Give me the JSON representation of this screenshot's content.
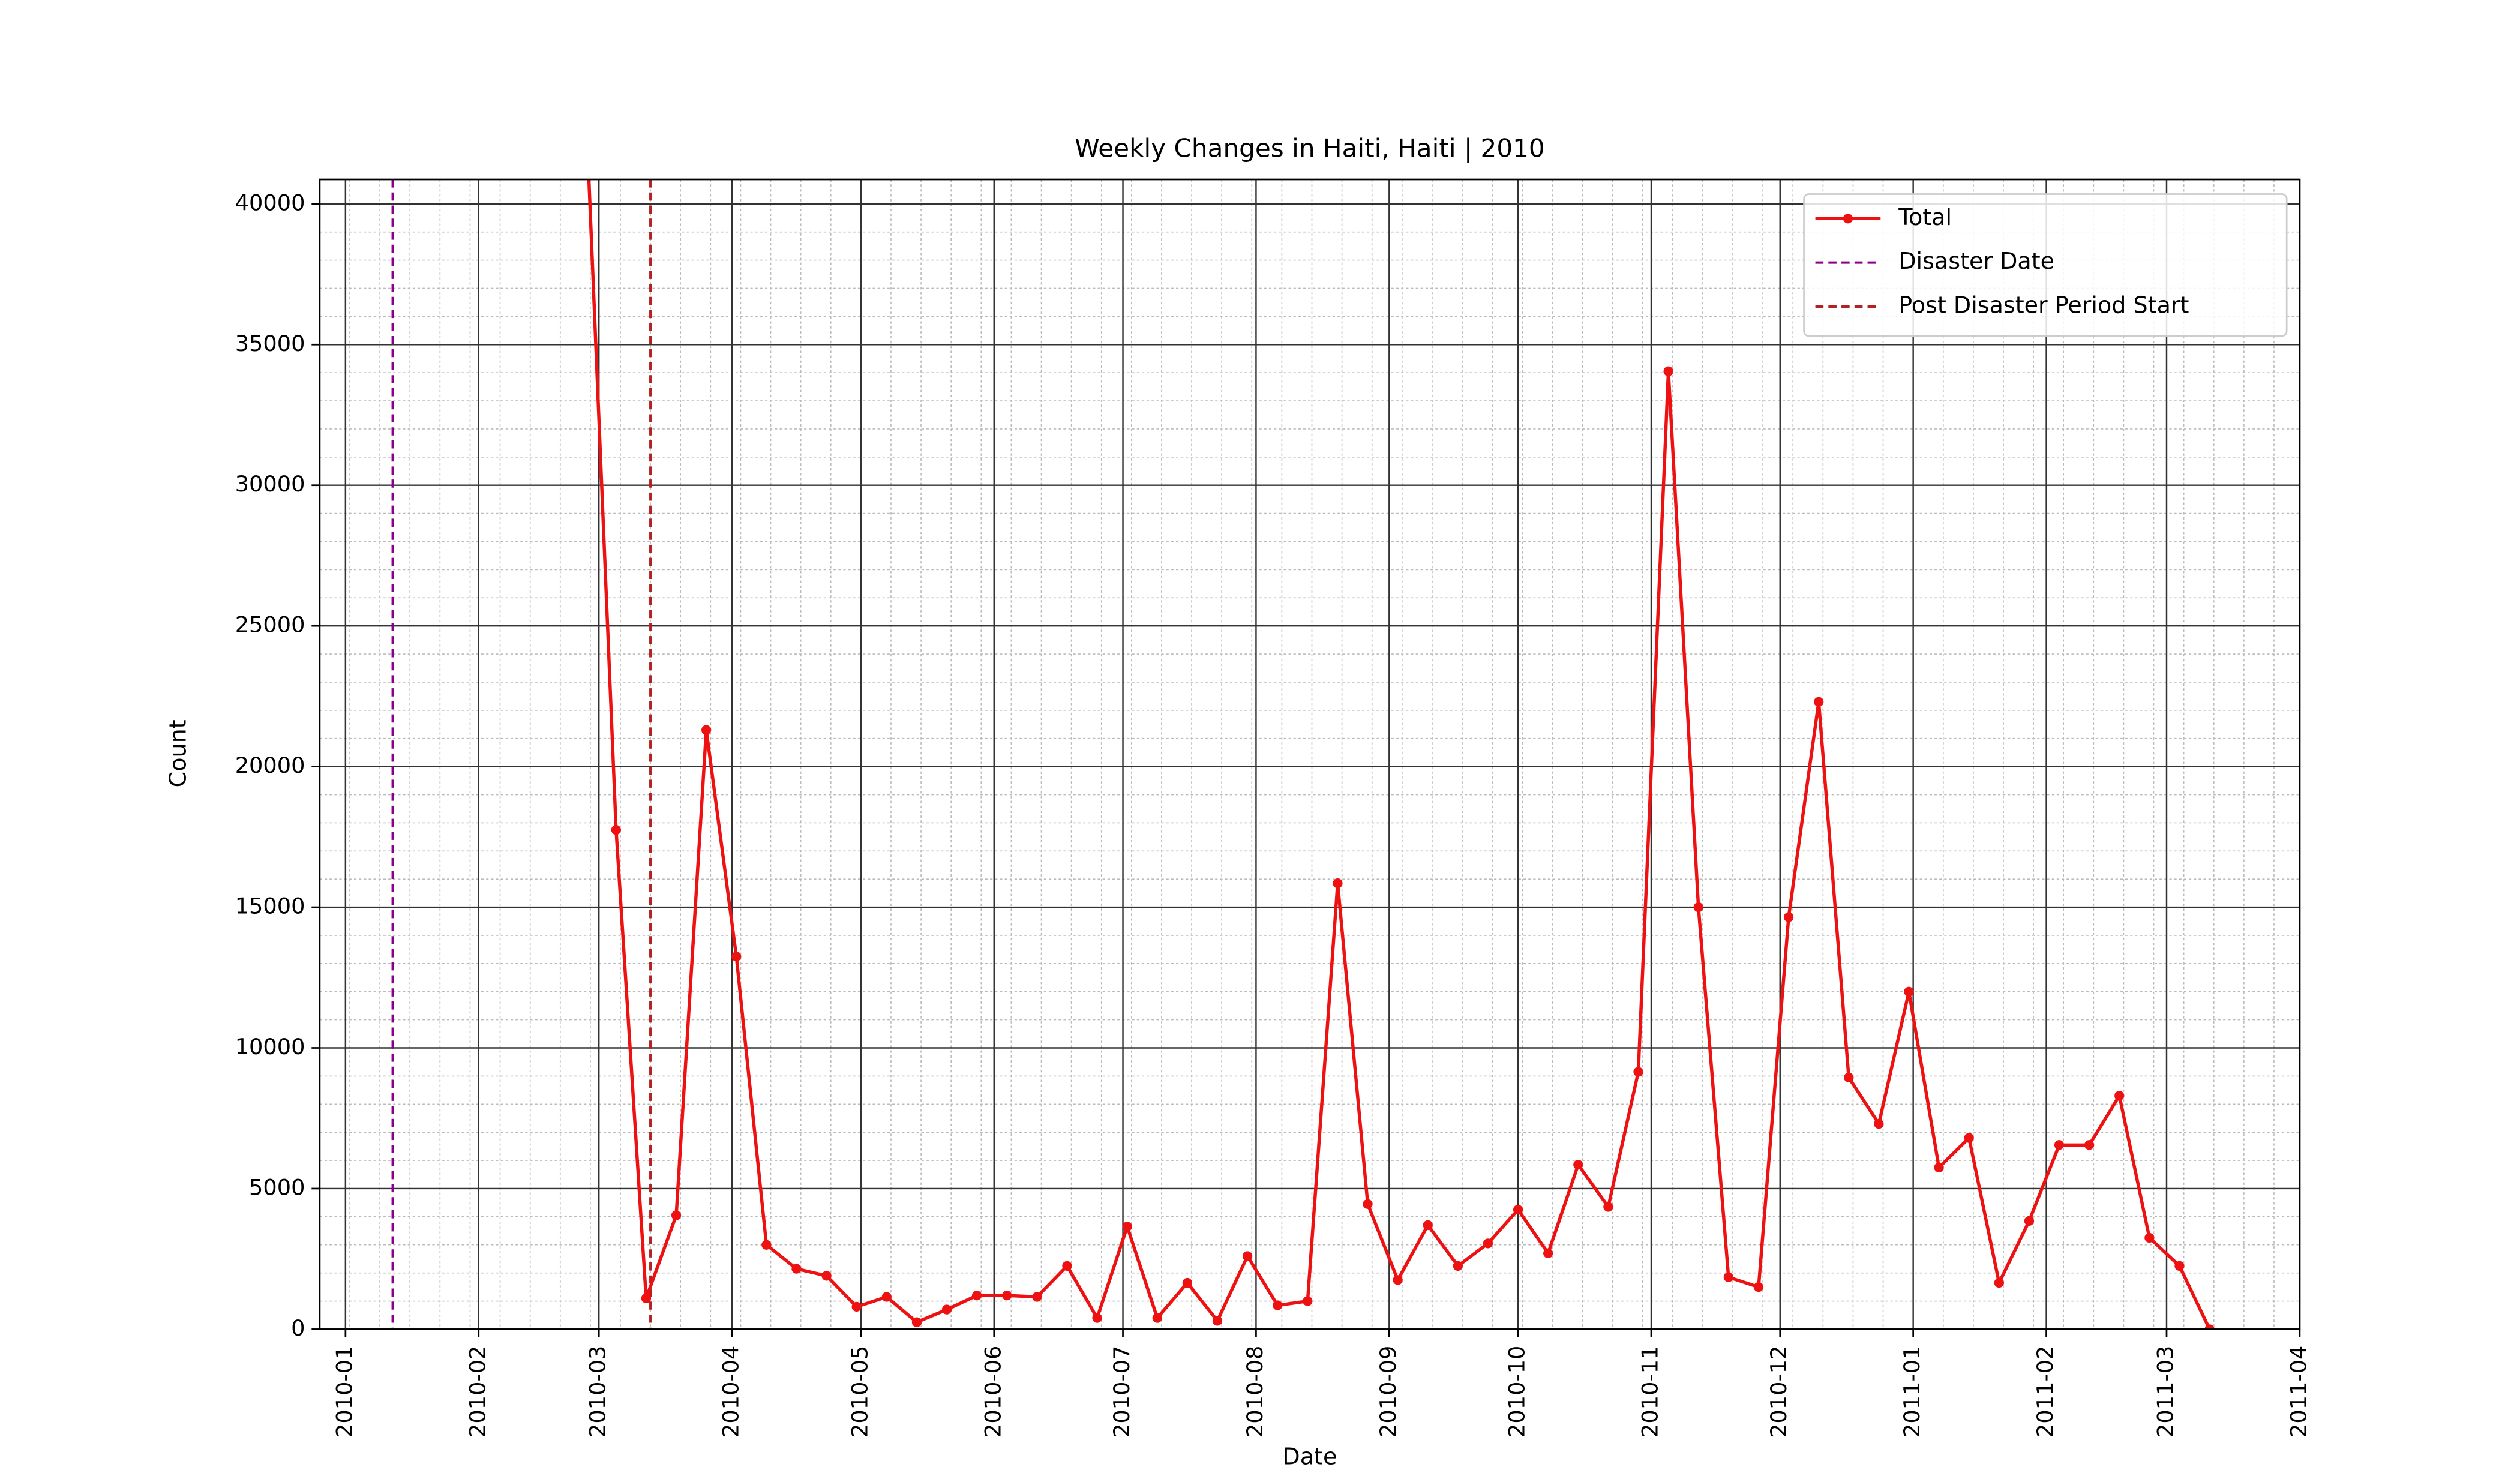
{
  "chart_data": {
    "type": "line",
    "title": "Weekly Changes in Haiti, Haiti | 2010",
    "x_label": "Date",
    "y_label": "Count",
    "x": [
      "2010-02-26",
      "2010-03-05",
      "2010-03-12",
      "2010-03-19",
      "2010-03-26",
      "2010-04-02",
      "2010-04-09",
      "2010-04-16",
      "2010-04-23",
      "2010-04-30",
      "2010-05-07",
      "2010-05-14",
      "2010-05-21",
      "2010-05-28",
      "2010-06-04",
      "2010-06-11",
      "2010-06-18",
      "2010-06-25",
      "2010-07-02",
      "2010-07-09",
      "2010-07-16",
      "2010-07-23",
      "2010-07-30",
      "2010-08-06",
      "2010-08-13",
      "2010-08-20",
      "2010-08-27",
      "2010-09-03",
      "2010-09-10",
      "2010-09-17",
      "2010-09-24",
      "2010-10-01",
      "2010-10-08",
      "2010-10-15",
      "2010-10-22",
      "2010-10-29",
      "2010-11-05",
      "2010-11-12",
      "2010-11-19",
      "2010-11-26",
      "2010-12-03",
      "2010-12-10",
      "2010-12-17",
      "2010-12-24",
      "2010-12-31",
      "2011-01-07",
      "2011-01-14",
      "2011-01-21",
      "2011-01-28",
      "2011-02-04",
      "2011-02-11",
      "2011-02-18",
      "2011-02-25",
      "2011-03-04",
      "2011-03-11"
    ],
    "series": [
      {
        "name": "Total",
        "color": "#ee1111",
        "values": [
          43300,
          17750,
          1100,
          4050,
          21300,
          13250,
          3000,
          2150,
          1900,
          800,
          1150,
          250,
          700,
          1200,
          1200,
          1150,
          2250,
          400,
          3650,
          400,
          1650,
          300,
          2600,
          850,
          1000,
          15850,
          4450,
          1750,
          3700,
          2250,
          3050,
          4250,
          2700,
          5850,
          4350,
          9150,
          34050,
          15000,
          1850,
          1500,
          14650,
          22300,
          8950,
          7300,
          12000,
          5750,
          6800,
          1650,
          3850,
          6550,
          6550,
          8300,
          3250,
          2250,
          0
        ]
      }
    ],
    "vlines": [
      {
        "name": "Disaster Date",
        "x": "2010-01-12",
        "color": "#8b008b"
      },
      {
        "name": "Post Disaster Period Start",
        "x": "2010-03-13",
        "color": "#b22222"
      }
    ],
    "xlim": [
      "2009-12-26",
      "2011-04-01"
    ],
    "ylim": [
      0,
      40870
    ],
    "xticks": [
      {
        "value": "2010-01-01",
        "label": "2010-01"
      },
      {
        "value": "2010-02-01",
        "label": "2010-02"
      },
      {
        "value": "2010-03-01",
        "label": "2010-03"
      },
      {
        "value": "2010-04-01",
        "label": "2010-04"
      },
      {
        "value": "2010-05-01",
        "label": "2010-05"
      },
      {
        "value": "2010-06-01",
        "label": "2010-06"
      },
      {
        "value": "2010-07-01",
        "label": "2010-07"
      },
      {
        "value": "2010-08-01",
        "label": "2010-08"
      },
      {
        "value": "2010-09-01",
        "label": "2010-09"
      },
      {
        "value": "2010-10-01",
        "label": "2010-10"
      },
      {
        "value": "2010-11-01",
        "label": "2010-11"
      },
      {
        "value": "2010-12-01",
        "label": "2010-12"
      },
      {
        "value": "2011-01-01",
        "label": "2011-01"
      },
      {
        "value": "2011-02-01",
        "label": "2011-02"
      },
      {
        "value": "2011-03-01",
        "label": "2011-03"
      },
      {
        "value": "2011-04-01",
        "label": "2011-04"
      }
    ],
    "yticks": [
      0,
      5000,
      10000,
      15000,
      20000,
      25000,
      30000,
      35000,
      40000
    ],
    "grid": true,
    "minor_grid": true,
    "legend": "upper right"
  }
}
